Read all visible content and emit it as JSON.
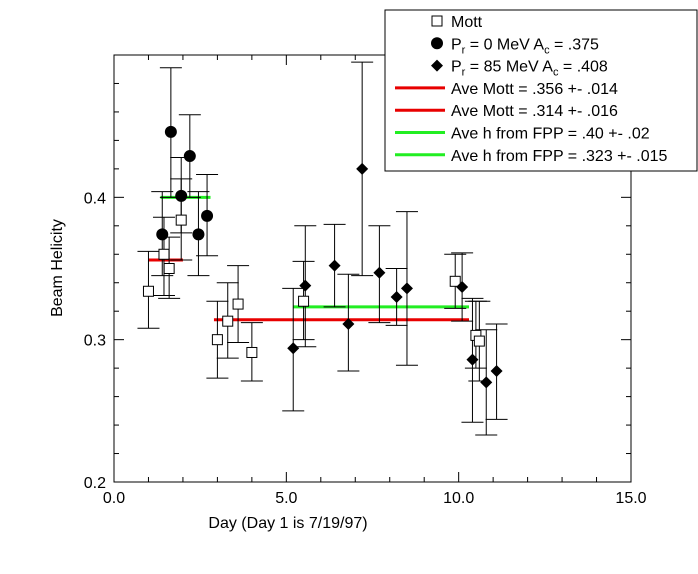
{
  "chart_data": {
    "type": "scatter",
    "xlabel": "Day (Day 1 is 7/19/97)",
    "ylabel": "Beam Helicity",
    "xlim": [
      0,
      15
    ],
    "ylim": [
      0.2,
      0.5
    ],
    "x_ticks": [
      "0.0",
      "5.0",
      "10.0",
      "15.0"
    ],
    "y_ticks": [
      "0.2",
      "0.3",
      "0.4"
    ],
    "legend_position": "top-right",
    "colors": {
      "red": "#e80000",
      "green": "#22ee22",
      "black": "#000000"
    },
    "series": [
      {
        "name": "Mott",
        "marker": "open-square",
        "points": [
          {
            "x": 1.0,
            "y": 0.334,
            "lo": 0.308,
            "hi": 0.362
          },
          {
            "x": 1.45,
            "y": 0.36,
            "lo": 0.331,
            "hi": 0.386
          },
          {
            "x": 1.6,
            "y": 0.35,
            "lo": 0.329,
            "hi": 0.372
          },
          {
            "x": 1.95,
            "y": 0.384,
            "lo": 0.356,
            "hi": 0.413
          },
          {
            "x": 3.0,
            "y": 0.3,
            "lo": 0.273,
            "hi": 0.327
          },
          {
            "x": 3.3,
            "y": 0.313,
            "lo": 0.287,
            "hi": 0.34
          },
          {
            "x": 3.6,
            "y": 0.325,
            "lo": 0.298,
            "hi": 0.352
          },
          {
            "x": 4.0,
            "y": 0.291,
            "lo": 0.271,
            "hi": 0.312
          },
          {
            "x": 5.5,
            "y": 0.327,
            "lo": 0.3,
            "hi": 0.355
          },
          {
            "x": 9.9,
            "y": 0.341,
            "lo": 0.322,
            "hi": 0.36
          },
          {
            "x": 10.5,
            "y": 0.303,
            "lo": 0.28,
            "hi": 0.327
          },
          {
            "x": 10.6,
            "y": 0.299,
            "lo": 0.271,
            "hi": 0.327
          }
        ]
      },
      {
        "name": "P_r = 0 MeV  A_c = .375",
        "marker": "filled-circle",
        "points": [
          {
            "x": 1.4,
            "y": 0.374,
            "lo": 0.345,
            "hi": 0.404
          },
          {
            "x": 1.65,
            "y": 0.446,
            "lo": 0.4,
            "hi": 0.491
          },
          {
            "x": 1.95,
            "y": 0.401,
            "lo": 0.375,
            "hi": 0.428
          },
          {
            "x": 2.2,
            "y": 0.429,
            "lo": 0.4,
            "hi": 0.458
          },
          {
            "x": 2.45,
            "y": 0.374,
            "lo": 0.345,
            "hi": 0.404
          },
          {
            "x": 2.7,
            "y": 0.387,
            "lo": 0.359,
            "hi": 0.416
          }
        ]
      },
      {
        "name": "P_r = 85 MeV A_c = .408",
        "marker": "filled-diamond",
        "points": [
          {
            "x": 5.2,
            "y": 0.294,
            "lo": 0.25,
            "hi": 0.336
          },
          {
            "x": 5.55,
            "y": 0.338,
            "lo": 0.295,
            "hi": 0.38
          },
          {
            "x": 6.4,
            "y": 0.352,
            "lo": 0.323,
            "hi": 0.381
          },
          {
            "x": 6.8,
            "y": 0.311,
            "lo": 0.278,
            "hi": 0.346
          },
          {
            "x": 7.2,
            "y": 0.42,
            "lo": 0.345,
            "hi": 0.495
          },
          {
            "x": 7.7,
            "y": 0.347,
            "lo": 0.312,
            "hi": 0.38
          },
          {
            "x": 8.2,
            "y": 0.33,
            "lo": 0.31,
            "hi": 0.35
          },
          {
            "x": 8.5,
            "y": 0.336,
            "lo": 0.282,
            "hi": 0.39
          },
          {
            "x": 10.1,
            "y": 0.337,
            "lo": 0.313,
            "hi": 0.361
          },
          {
            "x": 10.4,
            "y": 0.286,
            "lo": 0.242,
            "hi": 0.329
          },
          {
            "x": 10.8,
            "y": 0.27,
            "lo": 0.233,
            "hi": 0.307
          },
          {
            "x": 11.1,
            "y": 0.278,
            "lo": 0.244,
            "hi": 0.311
          }
        ]
      }
    ],
    "average_lines": [
      {
        "name": "Ave Mott = .356 +- .014",
        "color": "red",
        "x_start": 1.0,
        "x_end": 2.0,
        "y": 0.356
      },
      {
        "name": "Ave Mott = .314 +- .016",
        "color": "red",
        "x_start": 2.9,
        "x_end": 10.3,
        "y": 0.314
      },
      {
        "name": "Ave h from FPP = .40 +- .02",
        "color": "green",
        "x_start": 1.35,
        "x_end": 2.8,
        "y": 0.4
      },
      {
        "name": "Ave h from FPP = .323 +- .015",
        "color": "green",
        "x_start": 5.2,
        "x_end": 10.3,
        "y": 0.323
      }
    ]
  },
  "legend": {
    "entries": [
      {
        "marker": "open-square",
        "text": "Mott"
      },
      {
        "marker": "filled-circle",
        "text_main": "P",
        "sub": "r",
        "text_rest": " = 0 MeV  A",
        "sub2": "c",
        "text_end": " = .375"
      },
      {
        "marker": "filled-diamond",
        "text_main": "P",
        "sub": "r",
        "text_rest": " = 85 MeV A",
        "sub2": "c",
        "text_end": " = .408"
      },
      {
        "marker": "red-line",
        "text": "Ave Mott = .356 +- .014"
      },
      {
        "marker": "red-line",
        "text": "Ave Mott = .314 +- .016"
      },
      {
        "marker": "green-line",
        "text": "Ave h from FPP = .40 +- .02"
      },
      {
        "marker": "green-line",
        "text": "Ave h from FPP = .323 +- .015"
      }
    ]
  }
}
